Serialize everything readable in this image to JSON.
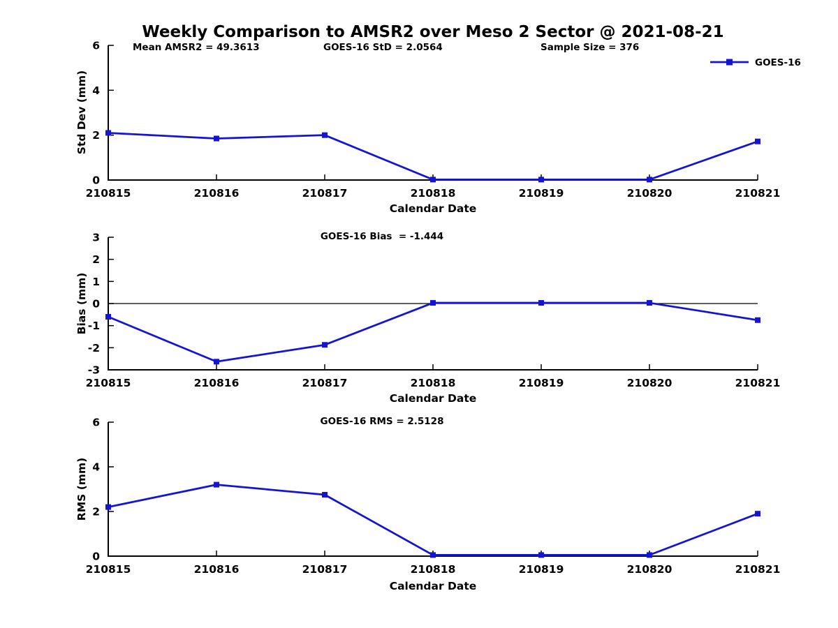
{
  "title": "Weekly Comparison to AMSR2 over Meso 2 Sector @ 2021-08-21",
  "series_color": "#1414d2",
  "axis_color": "#000000",
  "legend": {
    "label": "GOES-16"
  },
  "chart_data": [
    {
      "type": "line",
      "panel": "std-dev",
      "series": "GOES-16",
      "annotations": [
        "Mean AMSR2 = 49.3613",
        "GOES-16 StD = 2.0564",
        "Sample Size = 376"
      ],
      "categories": [
        "210815",
        "210816",
        "210817",
        "210818",
        "210819",
        "210820",
        "210821"
      ],
      "values": [
        2.1,
        1.85,
        2.0,
        0.02,
        0.02,
        0.02,
        1.72
      ],
      "xlabel": "Calendar Date",
      "ylabel": "Std Dev (mm)",
      "ylim": [
        0,
        6
      ],
      "yticks": [
        0,
        2,
        4,
        6
      ],
      "zero_line": false,
      "legend_position": "top-right",
      "grid": false
    },
    {
      "type": "line",
      "panel": "bias",
      "series": "GOES-16",
      "annotations": [
        "GOES-16 Bias  = -1.444"
      ],
      "categories": [
        "210815",
        "210816",
        "210817",
        "210818",
        "210819",
        "210820",
        "210821"
      ],
      "values": [
        -0.6,
        -2.63,
        -1.87,
        0.03,
        0.03,
        0.03,
        -0.75
      ],
      "xlabel": "Calendar Date",
      "ylabel": "Bias (mm)",
      "ylim": [
        -3,
        3
      ],
      "yticks": [
        -3,
        -2,
        -1,
        0,
        1,
        2,
        3
      ],
      "zero_line": true,
      "grid": false
    },
    {
      "type": "line",
      "panel": "rms",
      "series": "GOES-16",
      "annotations": [
        "GOES-16 RMS = 2.5128"
      ],
      "categories": [
        "210815",
        "210816",
        "210817",
        "210818",
        "210819",
        "210820",
        "210821"
      ],
      "values": [
        2.2,
        3.2,
        2.75,
        0.05,
        0.05,
        0.05,
        1.9
      ],
      "xlabel": "Calendar Date",
      "ylabel": "RMS (mm)",
      "ylim": [
        0,
        6
      ],
      "yticks": [
        0,
        2,
        4,
        6
      ],
      "zero_line": false,
      "grid": false
    }
  ]
}
